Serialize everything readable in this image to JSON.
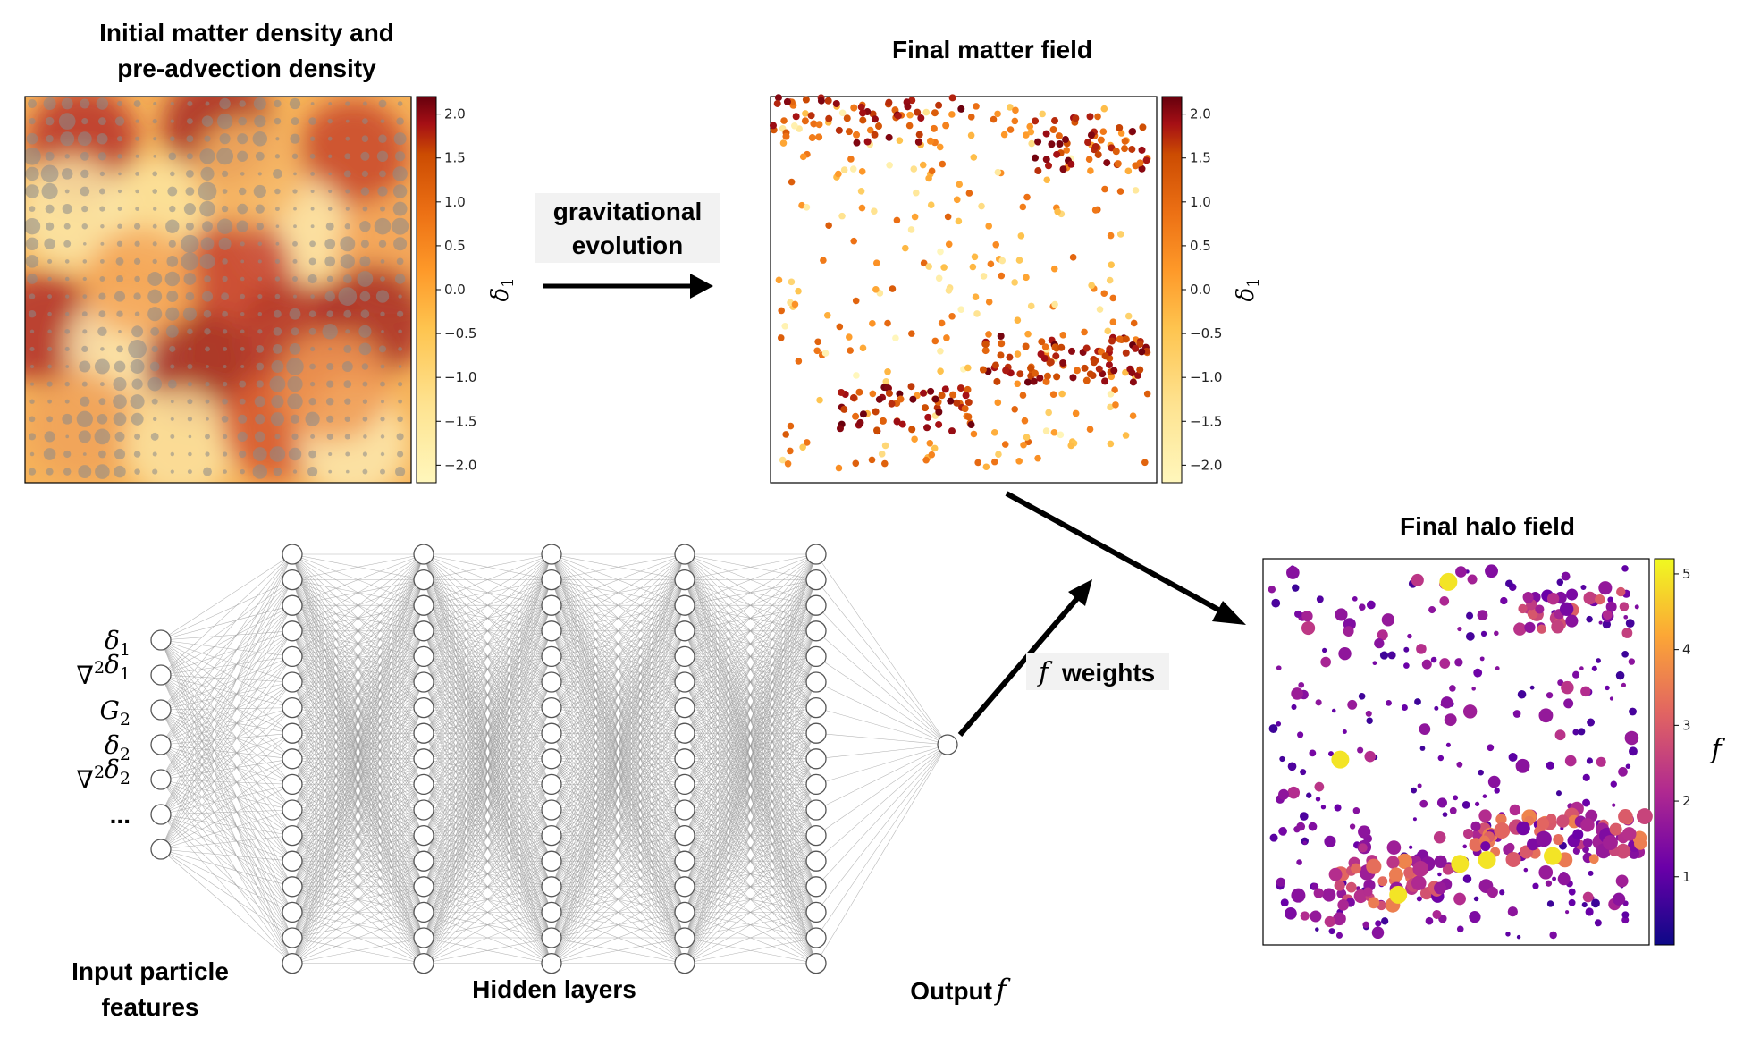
{
  "panels": {
    "initial": {
      "title_line1": "Initial matter density and",
      "title_line2": "pre-advection density"
    },
    "final_matter": {
      "title": "Final matter field"
    },
    "final_halo": {
      "title": "Final halo field"
    }
  },
  "colorbars": {
    "delta": {
      "label": "δ1",
      "ticks": [
        "2.0",
        "1.5",
        "1.0",
        "0.5",
        "0.0",
        "−0.5",
        "−1.0",
        "−1.5",
        "−2.0"
      ],
      "tick_values": [
        2.0,
        1.5,
        1.0,
        0.5,
        0.0,
        -0.5,
        -1.0,
        -1.5,
        -2.0
      ],
      "colormap": [
        "#fff7bc",
        "#fec44f",
        "#fe9929",
        "#ec7014",
        "#cc4c02",
        "#a50f15",
        "#67000d"
      ]
    },
    "halo": {
      "label": "f",
      "ticks": [
        "5",
        "4",
        "3",
        "2",
        "1"
      ],
      "tick_values": [
        5,
        4,
        3,
        2,
        1
      ],
      "colormap": [
        "#0d0887",
        "#6a00a8",
        "#b12a90",
        "#e16462",
        "#fca636",
        "#f0f921"
      ]
    }
  },
  "arrows": {
    "gravitational": {
      "line1": "gravitational",
      "line2": "evolution"
    },
    "weights": {
      "math": "f",
      "text": "weights"
    }
  },
  "network": {
    "input_features": [
      "δ1",
      "∇²δ1",
      "G2",
      "δ2",
      "∇²δ2",
      "..."
    ],
    "input_node_count": 7,
    "hidden_layer_count": 5,
    "hidden_nodes_per_layer": 17,
    "output_node_count": 1,
    "labels": {
      "input_line1": "Input particle",
      "input_line2": "features",
      "hidden": "Hidden layers",
      "output": "Output",
      "output_math": "f"
    }
  },
  "colors": {
    "node_stroke": "#555555",
    "edge": "#9a9a9a",
    "arrow": "#000000",
    "label_bg": "#f2f2f2"
  }
}
